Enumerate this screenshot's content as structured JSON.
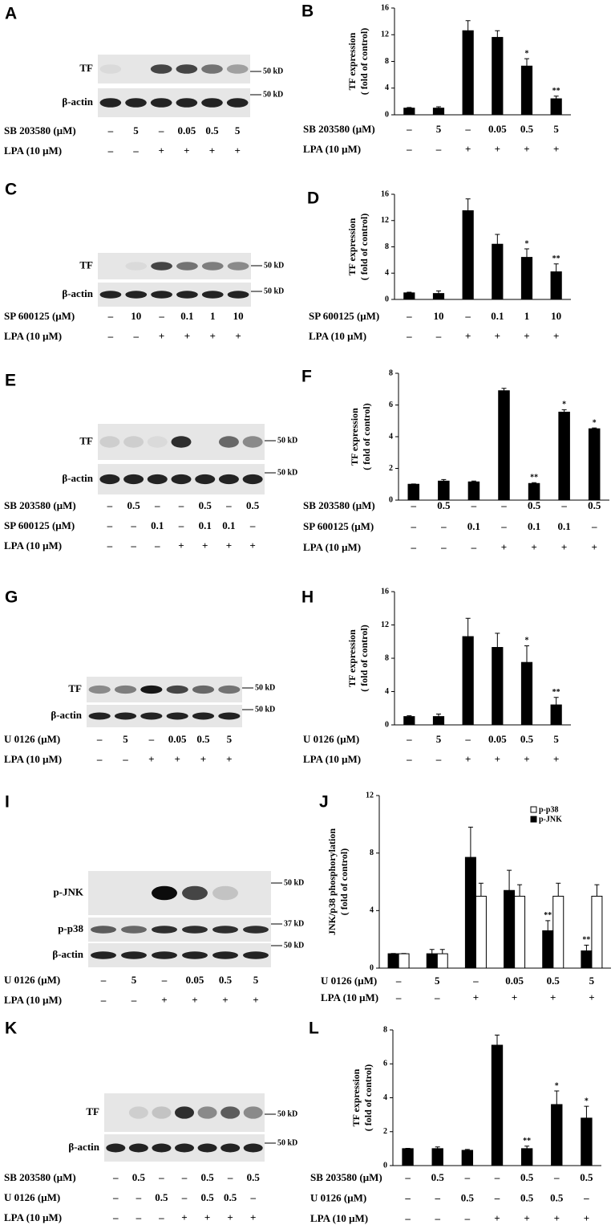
{
  "blots": [
    {
      "panel": "A",
      "rows": [
        "TF",
        "β-actin"
      ],
      "markers": [
        "50 kD",
        "50 kD"
      ],
      "conditions": [
        {
          "label": "SB 203580 (μM)",
          "values": [
            "–",
            "5",
            "–",
            "0.05",
            "0.5",
            "5"
          ]
        },
        {
          "label": "LPA (10 μM)",
          "values": [
            "–",
            "–",
            "+",
            "+",
            "+",
            "+"
          ]
        }
      ]
    },
    {
      "panel": "C",
      "rows": [
        "TF",
        "β-actin"
      ],
      "markers": [
        "50 kD",
        "50 kD"
      ],
      "conditions": [
        {
          "label": "SP 600125 (μM)",
          "values": [
            "–",
            "10",
            "–",
            "0.1",
            "1",
            "10"
          ]
        },
        {
          "label": "LPA (10 μM)",
          "values": [
            "–",
            "–",
            "+",
            "+",
            "+",
            "+"
          ]
        }
      ]
    },
    {
      "panel": "E",
      "rows": [
        "TF",
        "β-actin"
      ],
      "markers": [
        "50 kD",
        "50 kD"
      ],
      "conditions": [
        {
          "label": "SB 203580 (μM)",
          "values": [
            "–",
            "0.5",
            "–",
            "–",
            "0.5",
            "–",
            "0.5"
          ]
        },
        {
          "label": "SP 600125 (μM)",
          "values": [
            "–",
            "–",
            "0.1",
            "–",
            "0.1",
            "0.1",
            "–"
          ]
        },
        {
          "label": "LPA (10 μM)",
          "values": [
            "–",
            "–",
            "–",
            "+",
            "+",
            "+",
            "+"
          ]
        }
      ]
    },
    {
      "panel": "G",
      "rows": [
        "TF",
        "β-actin"
      ],
      "markers": [
        "50 kD",
        "50 kD"
      ],
      "conditions": [
        {
          "label": "U 0126 (μM)",
          "values": [
            "–",
            "5",
            "–",
            "0.05",
            "0.5",
            "5"
          ]
        },
        {
          "label": "LPA (10 μM)",
          "values": [
            "–",
            "–",
            "+",
            "+",
            "+",
            "+"
          ]
        }
      ]
    },
    {
      "panel": "I",
      "rows": [
        "p-JNK",
        "p-p38",
        "β-actin"
      ],
      "markers": [
        "50 kD",
        "37 kD",
        "50 kD"
      ],
      "conditions": [
        {
          "label": "U 0126 (μM)",
          "values": [
            "–",
            "5",
            "–",
            "0.05",
            "0.5",
            "5"
          ]
        },
        {
          "label": "LPA (10 μM)",
          "values": [
            "–",
            "–",
            "+",
            "+",
            "+",
            "+"
          ]
        }
      ]
    },
    {
      "panel": "K",
      "rows": [
        "TF",
        "β-actin"
      ],
      "markers": [
        "50 kD",
        "50 kD"
      ],
      "conditions": [
        {
          "label": "SB 203580 (μM)",
          "values": [
            "–",
            "0.5",
            "–",
            "–",
            "0.5",
            "–",
            "0.5"
          ]
        },
        {
          "label": "U 0126 (μM)",
          "values": [
            "–",
            "–",
            "0.5",
            "–",
            "0.5",
            "0.5",
            "–"
          ]
        },
        {
          "label": "LPA (10 μM)",
          "values": [
            "–",
            "–",
            "–",
            "+",
            "+",
            "+",
            "+"
          ]
        }
      ]
    }
  ],
  "chart_data": [
    {
      "type": "bar",
      "panel": "B",
      "ylabel": [
        "TF expression",
        "( fold of control)"
      ],
      "ylim": [
        0,
        16
      ],
      "yticks": [
        0,
        4,
        8,
        12,
        16
      ],
      "color": "#000000",
      "values": [
        1,
        1,
        12.6,
        11.6,
        7.3,
        2.4
      ],
      "errors": [
        0.1,
        0.2,
        1.5,
        1.0,
        1.1,
        0.4
      ],
      "significance": [
        null,
        null,
        null,
        null,
        "*",
        "**"
      ],
      "conditions": [
        {
          "label": "SB 203580 (μM)",
          "values": [
            "–",
            "5",
            "–",
            "0.05",
            "0.5",
            "5"
          ]
        },
        {
          "label": "LPA (10 μM)",
          "values": [
            "–",
            "–",
            "+",
            "+",
            "+",
            "+"
          ]
        }
      ]
    },
    {
      "type": "bar",
      "panel": "D",
      "ylabel": [
        "TF expression",
        "( fold of control)"
      ],
      "ylim": [
        0,
        16
      ],
      "yticks": [
        0,
        4,
        8,
        12,
        16
      ],
      "color": "#000000",
      "values": [
        1,
        0.9,
        13.5,
        8.4,
        6.4,
        4.2
      ],
      "errors": [
        0.1,
        0.4,
        1.8,
        1.5,
        1.3,
        1.2
      ],
      "significance": [
        null,
        null,
        null,
        null,
        "*",
        "**"
      ],
      "conditions": [
        {
          "label": "SP 600125 (μM)",
          "values": [
            "–",
            "10",
            "–",
            "0.1",
            "1",
            "10"
          ]
        },
        {
          "label": "LPA (10 μM)",
          "values": [
            "–",
            "–",
            "+",
            "+",
            "+",
            "+"
          ]
        }
      ]
    },
    {
      "type": "bar",
      "panel": "F",
      "ylabel": [
        "TF expression",
        "( fold of control)"
      ],
      "ylim": [
        0,
        8
      ],
      "yticks": [
        0,
        2,
        4,
        6,
        8
      ],
      "color": "#000000",
      "values": [
        1.0,
        1.2,
        1.15,
        6.9,
        1.05,
        5.55,
        4.5
      ],
      "errors": [
        0.02,
        0.1,
        0.05,
        0.15,
        0.05,
        0.15,
        0.05
      ],
      "significance": [
        null,
        null,
        null,
        null,
        "**",
        "*",
        "*"
      ],
      "conditions": [
        {
          "label": "SB 203580 (μM)",
          "values": [
            "–",
            "0.5",
            "–",
            "–",
            "0.5",
            "–",
            "0.5"
          ]
        },
        {
          "label": "SP 600125 (μM)",
          "values": [
            "–",
            "–",
            "0.1",
            "–",
            "0.1",
            "0.1",
            "–"
          ]
        },
        {
          "label": "LPA (10 μM)",
          "values": [
            "–",
            "–",
            "–",
            "+",
            "+",
            "+",
            "+"
          ]
        }
      ]
    },
    {
      "type": "bar",
      "panel": "H",
      "ylabel": [
        "TF expression",
        "( fold of control)"
      ],
      "ylim": [
        0,
        16
      ],
      "yticks": [
        0,
        4,
        8,
        12,
        16
      ],
      "color": "#000000",
      "values": [
        1,
        1,
        10.6,
        9.3,
        7.5,
        2.4
      ],
      "errors": [
        0.1,
        0.3,
        2.2,
        1.7,
        2.0,
        0.9
      ],
      "significance": [
        null,
        null,
        null,
        null,
        "*",
        "**"
      ],
      "conditions": [
        {
          "label": "U 0126 (μM)",
          "values": [
            "–",
            "5",
            "–",
            "0.05",
            "0.5",
            "5"
          ]
        },
        {
          "label": "LPA (10 μM)",
          "values": [
            "–",
            "–",
            "+",
            "+",
            "+",
            "+"
          ]
        }
      ]
    },
    {
      "type": "grouped_bar",
      "panel": "J",
      "ylabel": [
        "JNK/p38 phosphorylation",
        "( fold of control)"
      ],
      "ylim": [
        0,
        12
      ],
      "yticks": [
        0,
        4,
        8,
        12
      ],
      "series": [
        {
          "name": "p-p38",
          "color": "#ffffff",
          "values": [
            1,
            1,
            5.0,
            5.0,
            5.0,
            5.0
          ],
          "errors": [
            0.02,
            0.3,
            0.9,
            0.8,
            0.9,
            0.8
          ],
          "significance": [
            null,
            null,
            null,
            null,
            null,
            null
          ]
        },
        {
          "name": "p-JNK",
          "color": "#000000",
          "values": [
            1,
            1,
            7.7,
            5.4,
            2.6,
            1.2
          ],
          "errors": [
            0.02,
            0.3,
            2.1,
            1.4,
            0.7,
            0.4
          ],
          "significance": [
            null,
            null,
            null,
            null,
            "**",
            "**"
          ]
        }
      ],
      "conditions": [
        {
          "label": "U 0126 (μM)",
          "values": [
            "–",
            "5",
            "–",
            "0.05",
            "0.5",
            "5"
          ]
        },
        {
          "label": "LPA (10 μM)",
          "values": [
            "–",
            "–",
            "+",
            "+",
            "+",
            "+"
          ]
        }
      ]
    },
    {
      "type": "bar",
      "panel": "L",
      "ylabel": [
        "TF expression",
        "( fold of control)"
      ],
      "ylim": [
        0,
        8
      ],
      "yticks": [
        0,
        2,
        4,
        6,
        8
      ],
      "color": "#000000",
      "values": [
        1,
        1,
        0.9,
        7.1,
        1.0,
        3.6,
        2.8
      ],
      "errors": [
        0.02,
        0.1,
        0.05,
        0.6,
        0.15,
        0.8,
        0.7
      ],
      "significance": [
        null,
        null,
        null,
        null,
        "**",
        "*",
        "*"
      ],
      "conditions": [
        {
          "label": "SB 203580 (μM)",
          "values": [
            "–",
            "0.5",
            "–",
            "–",
            "0.5",
            "–",
            "0.5"
          ]
        },
        {
          "label": "U 0126 (μM)",
          "values": [
            "–",
            "–",
            "0.5",
            "–",
            "0.5",
            "0.5",
            "–"
          ]
        },
        {
          "label": "LPA (10 μM)",
          "values": [
            "–",
            "–",
            "–",
            "+",
            "+",
            "+",
            "+"
          ]
        }
      ]
    }
  ]
}
